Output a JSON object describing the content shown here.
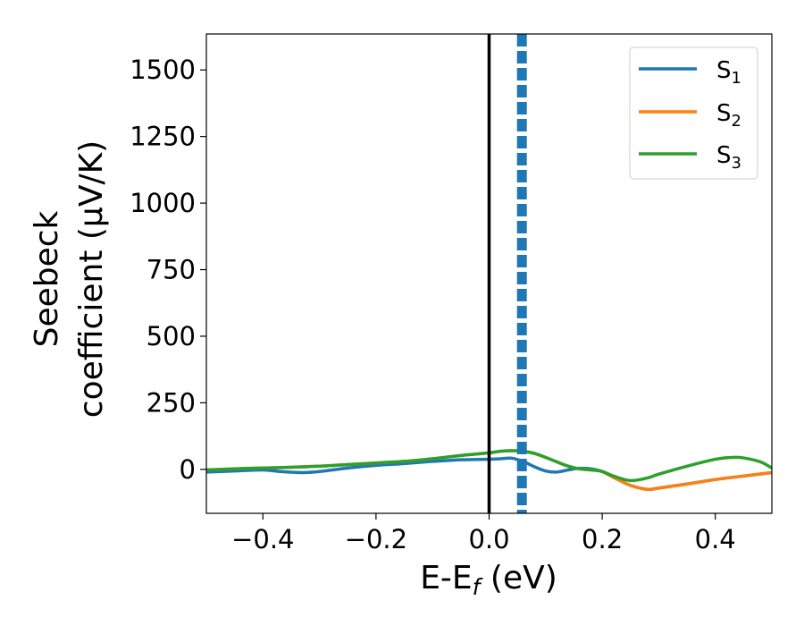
{
  "chart_data": {
    "type": "line",
    "xlabel": {
      "main": "E-E",
      "sub": "f",
      "suffix": " (eV)"
    },
    "ylabel": {
      "line1": "Seebeck",
      "line2": "coefficient  (μV/K)"
    },
    "xlim": [
      -0.5,
      0.5
    ],
    "ylim": [
      -165,
      1635
    ],
    "xticks": [
      -0.4,
      -0.2,
      0.0,
      0.2,
      0.4
    ],
    "xtick_labels": [
      "−0.4",
      "−0.2",
      "0.0",
      "0.2",
      "0.4"
    ],
    "yticks": [
      0,
      250,
      500,
      750,
      1000,
      1250,
      1500
    ],
    "ytick_labels": [
      "0",
      "250",
      "500",
      "750",
      "1000",
      "1250",
      "1500"
    ],
    "grid": false,
    "legend_position": "top-right",
    "vlines": [
      {
        "x": 0.0,
        "style": "solid",
        "color": "#000000"
      },
      {
        "x": 0.058,
        "style": "dashed",
        "color": "#1f77b4"
      }
    ],
    "series": [
      {
        "name": "S",
        "sub": "1",
        "color": "#1f77b4",
        "x": [
          -0.5,
          -0.45,
          -0.4,
          -0.37,
          -0.33,
          -0.3,
          -0.25,
          -0.2,
          -0.15,
          -0.1,
          -0.05,
          0.0,
          0.02,
          0.04,
          0.06,
          0.08,
          0.1,
          0.12,
          0.14,
          0.16,
          0.18,
          0.2,
          0.22,
          0.25,
          0.28,
          0.3,
          0.35,
          0.4,
          0.45,
          0.5
        ],
        "y": [
          -10,
          -6,
          -2,
          -8,
          -12,
          -8,
          5,
          15,
          22,
          30,
          36,
          38,
          40,
          42,
          30,
          10,
          -6,
          -10,
          -2,
          4,
          2,
          -8,
          -30,
          -60,
          -75,
          -70,
          -55,
          -38,
          -25,
          -12
        ]
      },
      {
        "name": "S",
        "sub": "2",
        "color": "#ff7f0e",
        "x": [
          -0.5,
          -0.45,
          -0.4,
          -0.35,
          -0.3,
          -0.25,
          -0.2,
          -0.15,
          -0.1,
          -0.05,
          0.0,
          0.02,
          0.04,
          0.06,
          0.08,
          0.1,
          0.12,
          0.14,
          0.16,
          0.18,
          0.2,
          0.22,
          0.25,
          0.28,
          0.3,
          0.35,
          0.4,
          0.45,
          0.5
        ],
        "y": [
          -2,
          2,
          5,
          8,
          12,
          18,
          24,
          30,
          40,
          52,
          62,
          68,
          70,
          68,
          60,
          45,
          28,
          12,
          2,
          -2,
          -8,
          -30,
          -60,
          -75,
          -70,
          -55,
          -38,
          -25,
          -12
        ]
      },
      {
        "name": "S",
        "sub": "3",
        "color": "#2ca02c",
        "x": [
          -0.5,
          -0.45,
          -0.4,
          -0.35,
          -0.3,
          -0.25,
          -0.2,
          -0.15,
          -0.1,
          -0.05,
          0.0,
          0.02,
          0.04,
          0.06,
          0.08,
          0.1,
          0.12,
          0.14,
          0.16,
          0.18,
          0.2,
          0.22,
          0.25,
          0.28,
          0.3,
          0.35,
          0.4,
          0.43,
          0.45,
          0.48,
          0.5
        ],
        "y": [
          -2,
          2,
          5,
          8,
          12,
          18,
          24,
          30,
          40,
          52,
          62,
          68,
          70,
          68,
          60,
          45,
          28,
          12,
          2,
          -2,
          -8,
          -25,
          -42,
          -32,
          -18,
          12,
          38,
          45,
          43,
          28,
          5
        ]
      }
    ]
  }
}
